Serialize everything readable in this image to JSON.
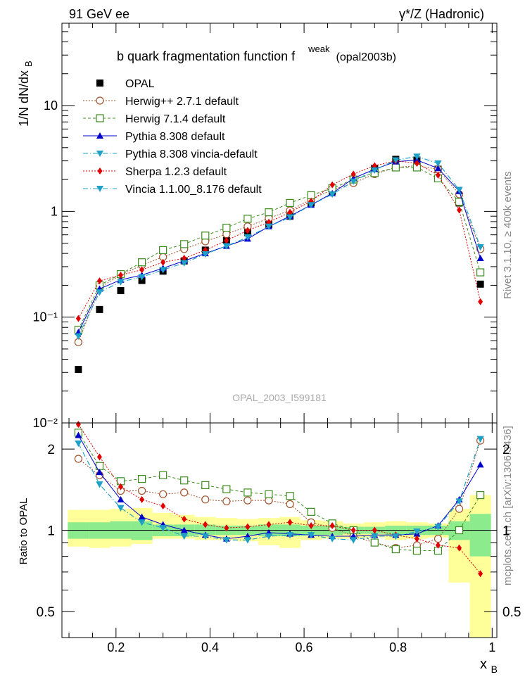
{
  "header": {
    "left": "91 GeV ee",
    "right": "γ*/Z (Hadronic)",
    "side_top": "Rivet 3.1.10, ≥ 400k events",
    "side_bottom": "mcplots.cern.ch [arXiv:1306.3436]"
  },
  "chart_data": [
    {
      "type": "line",
      "panel": "main",
      "title": "b quark fragmentation function f",
      "title_super": "weak",
      "title_suffix": "(opal2003b)",
      "watermark": "OPAL_2003_I599181",
      "ylabel": "1/N dN/dx",
      "ylabel_sub": "B",
      "yscale": "log",
      "ylim": [
        0.01,
        60
      ],
      "xlim": [
        0.085,
        1.01
      ],
      "ytick_labels": [
        "10⁻²",
        "10⁻¹",
        "1",
        "10"
      ],
      "legend_position": "top-left",
      "x": [
        0.12,
        0.165,
        0.21,
        0.255,
        0.3,
        0.345,
        0.39,
        0.435,
        0.48,
        0.525,
        0.57,
        0.615,
        0.66,
        0.705,
        0.75,
        0.795,
        0.84,
        0.885,
        0.93,
        0.975
      ],
      "series": [
        {
          "name": "OPAL",
          "color": "#000000",
          "marker": "filled-square",
          "line": "none",
          "values": [
            0.032,
            0.118,
            0.178,
            0.222,
            0.272,
            0.34,
            0.43,
            0.53,
            0.63,
            0.75,
            0.9,
            1.2,
            1.55,
            2.0,
            2.55,
            3.1,
            3.05,
            2.5,
            1.2,
            0.205
          ]
        },
        {
          "name": "Herwig++ 2.7.1 default",
          "color": "#a0522d",
          "marker": "open-circle",
          "line": "dotted",
          "values": [
            0.058,
            0.19,
            0.25,
            0.31,
            0.37,
            0.44,
            0.52,
            0.61,
            0.72,
            0.86,
            1.02,
            1.3,
            1.6,
            1.85,
            2.25,
            2.6,
            2.7,
            2.5,
            1.45,
            0.44
          ]
        },
        {
          "name": "Herwig 7.1.4 default",
          "color": "#3c8c1e",
          "marker": "open-square",
          "line": "dashed",
          "values": [
            0.076,
            0.2,
            0.255,
            0.33,
            0.43,
            0.49,
            0.59,
            0.7,
            0.85,
            0.98,
            1.2,
            1.42,
            1.65,
            2.0,
            2.3,
            2.6,
            2.6,
            2.05,
            1.23,
            0.265
          ]
        },
        {
          "name": "Pythia 8.308 default",
          "color": "#0000cc",
          "marker": "filled-triangle-up",
          "line": "solid",
          "values": [
            0.072,
            0.185,
            0.225,
            0.25,
            0.29,
            0.34,
            0.4,
            0.47,
            0.55,
            0.72,
            0.9,
            1.15,
            1.48,
            2.05,
            2.5,
            2.95,
            3.05,
            2.55,
            1.55,
            0.36
          ]
        },
        {
          "name": "Pythia 8.308 vincia-default",
          "color": "#1ea0c8",
          "marker": "filled-triangle-down",
          "line": "dashdot",
          "values": [
            0.066,
            0.172,
            0.215,
            0.24,
            0.28,
            0.325,
            0.395,
            0.47,
            0.57,
            0.72,
            0.88,
            1.15,
            1.45,
            1.92,
            2.45,
            3.05,
            3.3,
            2.85,
            1.6,
            0.46
          ]
        },
        {
          "name": "Sherpa 1.2.3 default",
          "color": "#e00000",
          "marker": "filled-diamond",
          "line": "dotted",
          "values": [
            0.097,
            0.22,
            0.25,
            0.28,
            0.33,
            0.36,
            0.43,
            0.53,
            0.66,
            0.79,
            0.98,
            1.25,
            1.78,
            2.25,
            2.7,
            3.0,
            2.85,
            2.2,
            1.03,
            0.14
          ]
        },
        {
          "name": "Vincia 1.1.00_8.176 default",
          "color": "#1ea0c8",
          "marker": "filled-triangle-down",
          "line": "dashdot",
          "values": [
            0.066,
            0.172,
            0.215,
            0.24,
            0.28,
            0.325,
            0.395,
            0.47,
            0.57,
            0.72,
            0.88,
            1.15,
            1.45,
            1.92,
            2.45,
            3.05,
            3.3,
            2.85,
            1.6,
            0.46
          ]
        }
      ]
    },
    {
      "type": "line",
      "panel": "ratio",
      "ylabel": "Ratio to OPAL",
      "xlabel": "x",
      "xlabel_sub": "B",
      "yscale": "log",
      "ylim": [
        0.4,
        2.5
      ],
      "xlim": [
        0.085,
        1.01
      ],
      "xtick_labels": [
        "0.2",
        "0.4",
        "0.6",
        "0.8",
        "1"
      ],
      "ytick_labels": [
        "0.5",
        "1",
        "2"
      ],
      "x": [
        0.12,
        0.165,
        0.21,
        0.255,
        0.3,
        0.345,
        0.39,
        0.435,
        0.48,
        0.525,
        0.57,
        0.615,
        0.66,
        0.705,
        0.75,
        0.795,
        0.84,
        0.885,
        0.93,
        0.975
      ],
      "bands": {
        "bin_edges": [
          0.0975,
          0.1425,
          0.1875,
          0.2325,
          0.2775,
          0.3225,
          0.3675,
          0.4125,
          0.4575,
          0.5025,
          0.5475,
          0.5925,
          0.6375,
          0.6825,
          0.7275,
          0.7725,
          0.8175,
          0.8625,
          0.9075,
          0.9525,
          0.9975
        ],
        "stat_lo": [
          0.93,
          0.93,
          0.93,
          0.92,
          0.95,
          0.95,
          0.96,
          0.96,
          0.96,
          0.95,
          0.95,
          0.96,
          0.96,
          0.97,
          0.97,
          0.96,
          0.96,
          0.96,
          0.92,
          0.8
        ],
        "stat_hi": [
          1.07,
          1.07,
          1.08,
          1.08,
          1.05,
          1.05,
          1.05,
          1.04,
          1.04,
          1.05,
          1.05,
          1.04,
          1.04,
          1.03,
          1.03,
          1.04,
          1.04,
          1.04,
          1.08,
          1.15
        ],
        "total_lo": [
          0.87,
          0.86,
          0.87,
          0.89,
          0.93,
          0.93,
          0.92,
          0.92,
          0.91,
          0.88,
          0.86,
          0.92,
          0.93,
          0.93,
          0.94,
          0.92,
          0.93,
          0.94,
          0.64,
          0.4
        ],
        "total_hi": [
          1.19,
          1.19,
          1.2,
          1.21,
          1.16,
          1.14,
          1.12,
          1.11,
          1.1,
          1.11,
          1.12,
          1.09,
          1.08,
          1.06,
          1.07,
          1.08,
          1.07,
          1.06,
          1.2,
          1.35
        ],
        "stat_color": "#8ceb8c",
        "total_color": "#ffff99"
      },
      "series": [
        {
          "name": "Herwig++ 2.7.1 default",
          "color": "#a0522d",
          "values": [
            1.84,
            1.6,
            1.4,
            1.4,
            1.36,
            1.38,
            1.3,
            1.28,
            1.29,
            1.29,
            1.25,
            1.07,
            1.02,
            0.95,
            0.9,
            0.86,
            0.88,
            0.93,
            1.2,
            2.15
          ]
        },
        {
          "name": "Herwig 7.1.4 default",
          "color": "#3c8c1e",
          "values": [
            2.3,
            1.73,
            1.52,
            1.55,
            1.6,
            1.53,
            1.47,
            1.42,
            1.38,
            1.36,
            1.34,
            1.17,
            1.06,
            1.0,
            0.9,
            0.85,
            0.84,
            0.84,
            1.0,
            1.35
          ]
        },
        {
          "name": "Pythia 8.308 default",
          "color": "#0000cc",
          "values": [
            2.25,
            1.64,
            1.3,
            1.12,
            1.05,
            1.0,
            0.96,
            0.93,
            0.95,
            0.98,
            0.97,
            0.96,
            0.95,
            0.95,
            0.96,
            0.96,
            0.97,
            1.04,
            1.3,
            1.75
          ]
        },
        {
          "name": "Pythia 8.308 vincia-default",
          "color": "#1ea0c8",
          "values": [
            2.1,
            1.48,
            1.21,
            1.07,
            1.02,
            0.95,
            0.95,
            0.92,
            0.92,
            0.95,
            0.96,
            0.96,
            0.93,
            0.92,
            0.95,
            0.95,
            0.99,
            1.03,
            1.28,
            2.18
          ]
        },
        {
          "name": "Sherpa 1.2.3 default",
          "color": "#e00000",
          "values": [
            2.47,
            1.87,
            1.45,
            1.3,
            1.23,
            1.1,
            1.05,
            1.02,
            1.03,
            1.05,
            1.07,
            1.04,
            1.04,
            1.0,
            1.0,
            0.96,
            0.93,
            0.88,
            0.86,
            0.69
          ]
        },
        {
          "name": "Vincia 1.1.00_8.176 default",
          "color": "#1ea0c8",
          "values": [
            2.1,
            1.48,
            1.21,
            1.07,
            1.02,
            0.95,
            0.95,
            0.92,
            0.92,
            0.95,
            0.96,
            0.96,
            0.93,
            0.92,
            0.95,
            0.95,
            0.99,
            1.03,
            1.28,
            2.18
          ]
        }
      ]
    }
  ]
}
